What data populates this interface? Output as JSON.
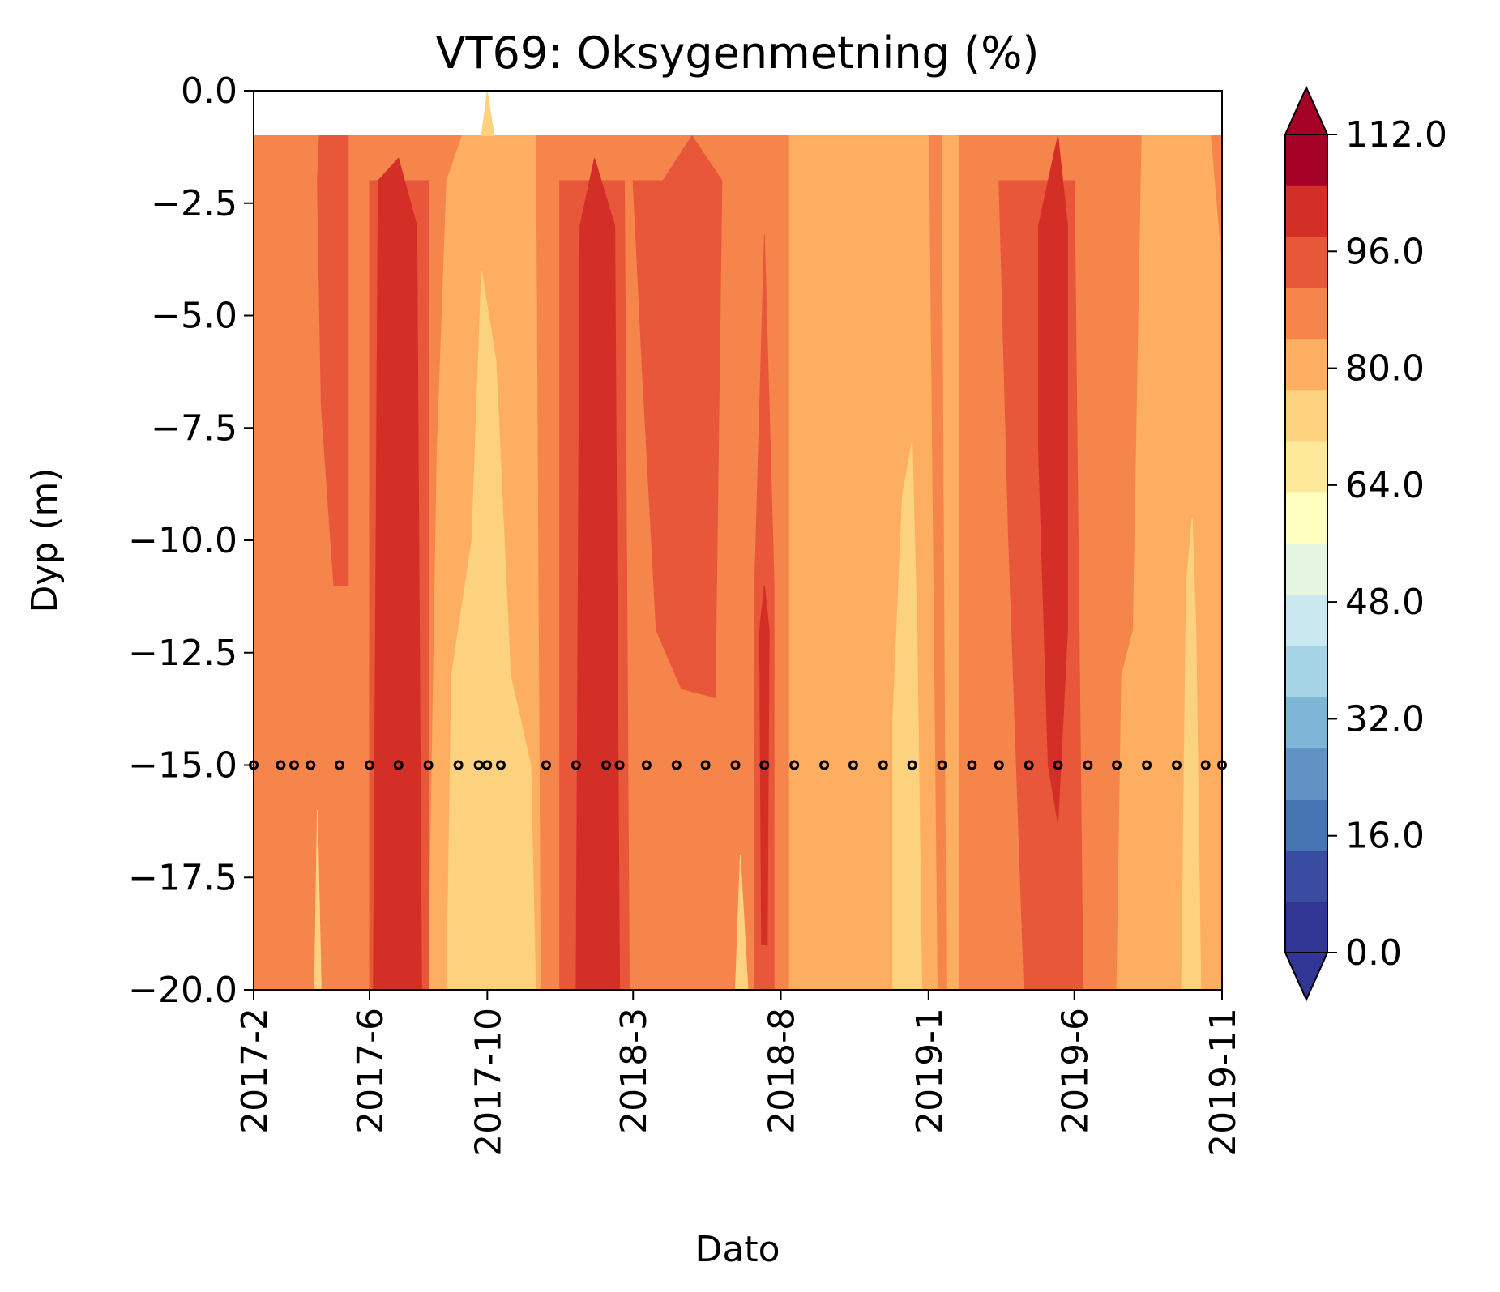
{
  "chart_data": {
    "type": "heatmap",
    "subtype": "filled-contour",
    "title": "VT69: Oksygenmetning (%)",
    "xlabel": "Dato",
    "ylabel": "Dyp (m)",
    "x_ticks": [
      "2017-2",
      "2017-6",
      "2017-10",
      "2018-3",
      "2018-8",
      "2019-1",
      "2019-6",
      "2019-11"
    ],
    "x_range": [
      "2017-02",
      "2019-11"
    ],
    "y_ticks": [
      "0.0",
      "−2.5",
      "−5.0",
      "−7.5",
      "−10.0",
      "−12.5",
      "−15.0",
      "−17.5",
      "−20.0"
    ],
    "y_range": [
      -20.0,
      0.0
    ],
    "colorbar": {
      "ticks": [
        "0.0",
        "16.0",
        "32.0",
        "48.0",
        "64.0",
        "80.0",
        "96.0",
        "112.0"
      ],
      "range": [
        0,
        112
      ],
      "level_step": 8,
      "extend": "both",
      "colors": [
        "#313695",
        "#3a4ba2",
        "#4675b4",
        "#6192c3",
        "#7fb5d6",
        "#a5d4e6",
        "#c9e8f0",
        "#e5f5e1",
        "#ffffbf",
        "#fee99b",
        "#fdd27f",
        "#fdae61",
        "#f5854b",
        "#e8573a",
        "#d42f27",
        "#a50026"
      ],
      "under_color": "#313695",
      "over_color": "#a50026"
    },
    "legend_position": "right-colorbar",
    "grid": false,
    "sample_depth_m": -15.0,
    "sample_dates": [
      "2017-02-01",
      "2017-03-01",
      "2017-03-15",
      "2017-04-01",
      "2017-05-01",
      "2017-06-01",
      "2017-07-01",
      "2017-08-01",
      "2017-09-01",
      "2017-09-22",
      "2017-10-01",
      "2017-10-15",
      "2017-12-01",
      "2018-01-01",
      "2018-02-01",
      "2018-02-15",
      "2018-03-15",
      "2018-04-15",
      "2018-05-15",
      "2018-06-15",
      "2018-07-15",
      "2018-08-15",
      "2018-09-15",
      "2018-10-15",
      "2018-11-15",
      "2018-12-15",
      "2019-01-15",
      "2019-02-15",
      "2019-03-15",
      "2019-04-15",
      "2019-05-15",
      "2019-06-15",
      "2019-07-15",
      "2019-08-15",
      "2019-09-15",
      "2019-10-15",
      "2019-11-01"
    ],
    "regions": [
      {
        "value": 100,
        "poly": [
          [
            "2017-02-01",
            -1
          ],
          [
            "2019-11-01",
            -1
          ],
          [
            "2019-11-01",
            -20
          ],
          [
            "2017-02-01",
            -20
          ]
        ]
      },
      {
        "value": 92,
        "poly": [
          [
            "2017-06-10",
            -20
          ],
          [
            "2017-06-20",
            -3
          ],
          [
            "2017-07-15",
            -3
          ],
          [
            "2017-07-25",
            -20
          ]
        ]
      },
      {
        "value": 92,
        "poly": [
          [
            "2017-08-01",
            -20
          ],
          [
            "2017-08-10",
            -8
          ],
          [
            "2017-08-20",
            -2
          ],
          [
            "2017-09-05",
            -1
          ],
          [
            "2017-11-20",
            -1
          ],
          [
            "2017-11-25",
            -20
          ]
        ]
      },
      {
        "value": 92,
        "poly": [
          [
            "2018-08-10",
            -20
          ],
          [
            "2018-08-10",
            -1
          ],
          [
            "2019-01-01",
            -1
          ],
          [
            "2019-01-10",
            -20
          ]
        ]
      },
      {
        "value": 92,
        "poly": [
          [
            "2019-07-15",
            -20
          ],
          [
            "2019-07-20",
            -13
          ],
          [
            "2019-08-01",
            -12
          ],
          [
            "2019-08-10",
            -1
          ],
          [
            "2019-10-20",
            -1
          ],
          [
            "2019-11-01",
            -4
          ],
          [
            "2019-11-01",
            -20
          ]
        ]
      },
      {
        "value": 92,
        "poly": [
          [
            "2019-01-15",
            -1
          ],
          [
            "2019-02-01",
            -1
          ],
          [
            "2019-02-01",
            -20
          ],
          [
            "2019-01-20",
            -20
          ]
        ]
      },
      {
        "value": 84,
        "poly": [
          [
            "2017-08-20",
            -20
          ],
          [
            "2017-08-25",
            -13
          ],
          [
            "2017-09-15",
            -10
          ],
          [
            "2017-09-25",
            -4
          ],
          [
            "2017-10-10",
            -6
          ],
          [
            "2017-10-25",
            -13
          ],
          [
            "2017-11-15",
            -15
          ],
          [
            "2017-11-20",
            -20
          ]
        ]
      },
      {
        "value": 84,
        "poly": [
          [
            "2017-09-25",
            -1
          ],
          [
            "2017-10-01",
            0
          ],
          [
            "2017-10-08",
            -1
          ]
        ]
      },
      {
        "value": 84,
        "poly": [
          [
            "2018-11-25",
            -20
          ],
          [
            "2018-11-25",
            -14
          ],
          [
            "2018-12-05",
            -9
          ],
          [
            "2018-12-15",
            -7.8
          ],
          [
            "2018-12-20",
            -12
          ],
          [
            "2018-12-25",
            -20
          ]
        ]
      },
      {
        "value": 84,
        "poly": [
          [
            "2019-09-20",
            -20
          ],
          [
            "2019-09-25",
            -11
          ],
          [
            "2019-10-01",
            -9.5
          ],
          [
            "2019-10-05",
            -12
          ],
          [
            "2019-10-10",
            -20
          ]
        ]
      },
      {
        "value": 84,
        "poly": [
          [
            "2017-04-05",
            -20
          ],
          [
            "2017-04-08",
            -16
          ],
          [
            "2017-04-12",
            -20
          ]
        ]
      },
      {
        "value": 84,
        "poly": [
          [
            "2018-06-15",
            -20
          ],
          [
            "2018-06-20",
            -17
          ],
          [
            "2018-06-28",
            -20
          ]
        ]
      },
      {
        "value": 108,
        "poly": [
          [
            "2017-04-10",
            -1
          ],
          [
            "2017-05-10",
            -1
          ],
          [
            "2017-05-10",
            -11
          ],
          [
            "2017-04-25",
            -11
          ],
          [
            "2017-04-12",
            -7
          ],
          [
            "2017-04-08",
            -2
          ]
        ]
      },
      {
        "value": 108,
        "poly": [
          [
            "2018-03-01",
            -2
          ],
          [
            "2018-04-01",
            -2
          ],
          [
            "2018-05-01",
            -1
          ],
          [
            "2018-06-01",
            -2
          ],
          [
            "2018-05-25",
            -13.5
          ],
          [
            "2018-04-20",
            -13.3
          ],
          [
            "2018-03-25",
            -12
          ],
          [
            "2018-03-10",
            -6
          ]
        ]
      },
      {
        "value": 108,
        "poly": [
          [
            "2017-12-15",
            -2
          ],
          [
            "2018-02-20",
            -2
          ],
          [
            "2018-02-25",
            -20
          ],
          [
            "2017-12-15",
            -20
          ]
        ]
      },
      {
        "value": 108,
        "poly": [
          [
            "2017-06-01",
            -2
          ],
          [
            "2017-08-01",
            -2
          ],
          [
            "2017-08-01",
            -20
          ],
          [
            "2017-06-01",
            -20
          ]
        ]
      },
      {
        "value": 108,
        "poly": [
          [
            "2019-03-15",
            -2
          ],
          [
            "2019-06-01",
            -2
          ],
          [
            "2019-06-10",
            -20
          ],
          [
            "2019-04-10",
            -20
          ],
          [
            "2019-03-25",
            -10
          ]
        ]
      },
      {
        "value": 108,
        "poly": [
          [
            "2018-07-05",
            -11
          ],
          [
            "2018-07-15",
            -3.2
          ],
          [
            "2018-07-25",
            -11
          ],
          [
            "2018-07-25",
            -20
          ],
          [
            "2018-07-05",
            -20
          ]
        ]
      },
      {
        "value": 112,
        "poly": [
          [
            "2017-06-05",
            -20
          ],
          [
            "2017-06-10",
            -2
          ],
          [
            "2017-07-01",
            -1.5
          ],
          [
            "2017-07-20",
            -3
          ],
          [
            "2017-07-25",
            -20
          ]
        ]
      },
      {
        "value": 112,
        "poly": [
          [
            "2018-01-01",
            -20
          ],
          [
            "2018-01-05",
            -3
          ],
          [
            "2018-01-20",
            -1.5
          ],
          [
            "2018-02-10",
            -3
          ],
          [
            "2018-02-15",
            -20
          ]
        ]
      },
      {
        "value": 112,
        "poly": [
          [
            "2018-07-10",
            -12
          ],
          [
            "2018-07-15",
            -11
          ],
          [
            "2018-07-20",
            -12
          ],
          [
            "2018-07-18",
            -19
          ],
          [
            "2018-07-12",
            -19
          ]
        ]
      },
      {
        "value": 112,
        "poly": [
          [
            "2019-04-25",
            -3
          ],
          [
            "2019-05-15",
            -1
          ],
          [
            "2019-05-25",
            -3
          ],
          [
            "2019-05-25",
            -12
          ],
          [
            "2019-05-15",
            -16.3
          ],
          [
            "2019-05-05",
            -15
          ],
          [
            "2019-04-25",
            -8
          ]
        ]
      }
    ]
  }
}
